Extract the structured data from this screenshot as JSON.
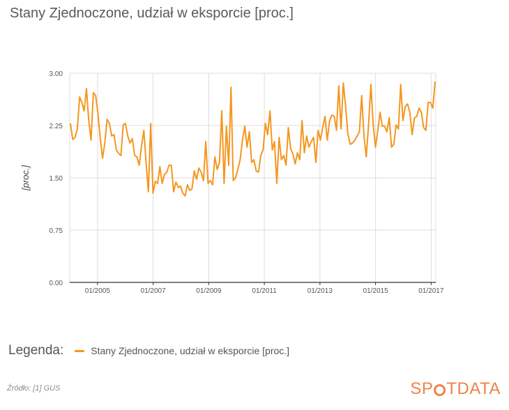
{
  "title": "Stany Zjednoczone, udział w eksporcie [proc.]",
  "legend": {
    "title": "Legenda:",
    "entries": [
      {
        "label": "Stany Zjednoczone, udział w eksporcie [proc.]"
      }
    ]
  },
  "source": "Źródło: [1] GUS",
  "logo": {
    "part1": "SP",
    "part2": "TDATA"
  },
  "colors": {
    "line": "#f5961e",
    "grid": "#dcdcdc",
    "axis": "#333333",
    "logo": "#f0824a"
  },
  "chart_data": {
    "type": "line",
    "title": "Stany Zjednoczone, udział w eksporcie [proc.]",
    "xlabel": "",
    "ylabel": "[proc.]",
    "ylim": [
      0,
      3
    ],
    "yticks": [
      "0.00",
      "0.75",
      "1.50",
      "2.25",
      "3.00"
    ],
    "xticks": [
      "01/2005",
      "01/2007",
      "01/2009",
      "01/2011",
      "01/2013",
      "01/2015",
      "01/2017"
    ],
    "x_start": "01/2004",
    "x_end": "03/2017",
    "grid": true,
    "series": [
      {
        "name": "Stany Zjednoczone, udział w eksporcie [proc.]",
        "values": [
          2.28,
          2.05,
          2.08,
          2.2,
          2.66,
          2.58,
          2.46,
          2.78,
          2.32,
          2.04,
          2.72,
          2.68,
          2.42,
          2.06,
          1.78,
          2.0,
          2.34,
          2.28,
          2.1,
          2.12,
          1.9,
          1.85,
          1.82,
          2.26,
          2.28,
          2.1,
          2.0,
          2.06,
          1.82,
          1.8,
          1.68,
          1.96,
          2.18,
          1.72,
          1.3,
          2.28,
          1.28,
          1.45,
          1.42,
          1.66,
          1.42,
          1.55,
          1.58,
          1.68,
          1.68,
          1.3,
          1.44,
          1.36,
          1.38,
          1.28,
          1.24,
          1.4,
          1.32,
          1.34,
          1.6,
          1.48,
          1.64,
          1.58,
          1.46,
          2.02,
          1.42,
          1.46,
          1.4,
          1.8,
          1.62,
          1.72,
          2.46,
          1.42,
          2.24,
          1.68,
          2.8,
          1.46,
          1.5,
          1.62,
          1.76,
          2.04,
          2.24,
          1.94,
          2.16,
          1.72,
          1.76,
          1.6,
          1.58,
          1.82,
          1.9,
          2.28,
          2.12,
          2.46,
          1.9,
          2.02,
          1.42,
          2.08,
          1.76,
          1.82,
          1.68,
          2.22,
          1.92,
          1.84,
          1.7,
          1.86,
          1.76,
          2.32,
          1.86,
          2.1,
          1.94,
          2.02,
          2.08,
          1.72,
          2.18,
          2.04,
          2.22,
          2.38,
          2.04,
          2.32,
          2.4,
          2.38,
          2.18,
          2.82,
          2.2,
          2.86,
          2.52,
          2.12,
          1.98,
          2.0,
          2.04,
          2.1,
          2.16,
          2.68,
          2.1,
          1.8,
          2.26,
          2.84,
          2.26,
          1.94,
          2.18,
          2.44,
          2.24,
          2.24,
          2.16,
          2.36,
          1.94,
          1.98,
          2.26,
          2.2,
          2.84,
          2.32,
          2.52,
          2.56,
          2.44,
          2.12,
          2.36,
          2.38,
          2.5,
          2.44,
          2.22,
          2.18,
          2.58,
          2.58,
          2.5,
          2.88
        ]
      }
    ]
  }
}
